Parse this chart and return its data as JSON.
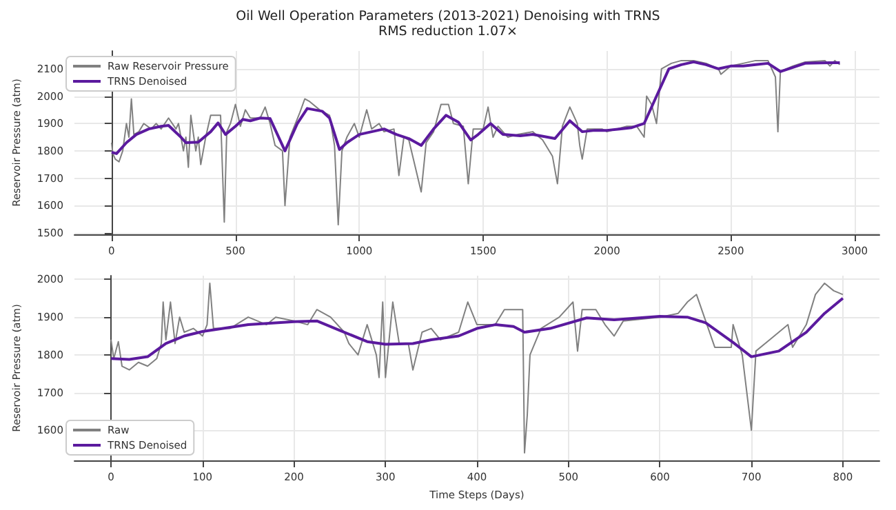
{
  "chart_data": [
    {
      "type": "line",
      "title": "Oil Well Operation Parameters (2013-2021) Denoising with TRNS",
      "subtitle": "RMS reduction 1.07×",
      "ylabel": "Reservoir Pressure (atm)",
      "xlim": [
        -150,
        3100
      ],
      "ylim": [
        1495,
        2165
      ],
      "xticks": [
        0,
        500,
        1000,
        1500,
        2000,
        2500,
        3000
      ],
      "yticks": [
        1500,
        1600,
        1700,
        1800,
        1900,
        2000,
        2100
      ],
      "grid": true,
      "legend": "top left",
      "marker": "none",
      "line_style": "solid",
      "series": [
        {
          "name": "Raw Reservoir Pressure",
          "color": "#808080",
          "x": [
            0,
            5,
            15,
            30,
            45,
            60,
            70,
            80,
            90,
            110,
            130,
            160,
            180,
            200,
            230,
            260,
            270,
            290,
            300,
            310,
            320,
            340,
            350,
            360,
            380,
            400,
            440,
            455,
            465,
            480,
            500,
            520,
            540,
            560,
            600,
            620,
            640,
            660,
            690,
            700,
            720,
            760,
            780,
            800,
            840,
            860,
            880,
            900,
            915,
            930,
            950,
            980,
            1000,
            1030,
            1050,
            1080,
            1100,
            1140,
            1160,
            1180,
            1200,
            1250,
            1270,
            1300,
            1330,
            1360,
            1380,
            1420,
            1440,
            1460,
            1500,
            1520,
            1540,
            1560,
            1600,
            1640,
            1700,
            1740,
            1780,
            1800,
            1820,
            1850,
            1880,
            1890,
            1900,
            1920,
            1980,
            2000,
            2040,
            2080,
            2120,
            2150,
            2160,
            2180,
            2200,
            2220,
            2260,
            2300,
            2350,
            2400,
            2450,
            2460,
            2500,
            2550,
            2600,
            2650,
            2680,
            2690,
            2700,
            2750,
            2800,
            2880,
            2900,
            2920,
            2940
          ],
          "values": [
            1830,
            1790,
            1770,
            1760,
            1800,
            1900,
            1850,
            1990,
            1860,
            1870,
            1900,
            1880,
            1900,
            1880,
            1920,
            1880,
            1900,
            1800,
            1850,
            1740,
            1930,
            1800,
            1850,
            1750,
            1850,
            1930,
            1930,
            1540,
            1870,
            1900,
            1970,
            1890,
            1950,
            1920,
            1920,
            1960,
            1900,
            1820,
            1800,
            1600,
            1850,
            1940,
            1990,
            1980,
            1950,
            1940,
            1930,
            1820,
            1530,
            1800,
            1850,
            1900,
            1850,
            1950,
            1880,
            1900,
            1870,
            1880,
            1710,
            1850,
            1840,
            1650,
            1830,
            1870,
            1970,
            1970,
            1900,
            1890,
            1680,
            1880,
            1880,
            1960,
            1850,
            1890,
            1850,
            1860,
            1870,
            1840,
            1780,
            1680,
            1890,
            1960,
            1900,
            1820,
            1770,
            1880,
            1880,
            1870,
            1880,
            1890,
            1890,
            1850,
            2000,
            1970,
            1900,
            2100,
            2120,
            2130,
            2130,
            2120,
            2100,
            2080,
            2110,
            2120,
            2130,
            2130,
            2070,
            1870,
            2090,
            2110,
            2125,
            2130,
            2110,
            2130,
            2115
          ]
        },
        {
          "name": "TRNS Denoised",
          "color": "#5b1a9e",
          "x": [
            0,
            20,
            60,
            100,
            150,
            200,
            230,
            280,
            300,
            350,
            400,
            430,
            460,
            500,
            530,
            560,
            600,
            640,
            700,
            750,
            790,
            850,
            880,
            920,
            950,
            1000,
            1050,
            1100,
            1150,
            1200,
            1250,
            1300,
            1350,
            1400,
            1450,
            1480,
            1530,
            1580,
            1650,
            1700,
            1790,
            1850,
            1900,
            1950,
            2000,
            2050,
            2100,
            2150,
            2200,
            2250,
            2300,
            2350,
            2400,
            2450,
            2500,
            2550,
            2600,
            2650,
            2700,
            2750,
            2800,
            2900,
            2940
          ],
          "values": [
            1795,
            1790,
            1830,
            1860,
            1880,
            1890,
            1893,
            1850,
            1830,
            1832,
            1870,
            1902,
            1860,
            1890,
            1915,
            1910,
            1920,
            1918,
            1800,
            1900,
            1955,
            1945,
            1920,
            1805,
            1830,
            1860,
            1870,
            1880,
            1860,
            1845,
            1820,
            1880,
            1930,
            1905,
            1840,
            1860,
            1900,
            1860,
            1855,
            1860,
            1845,
            1910,
            1870,
            1875,
            1875,
            1880,
            1885,
            1900,
            2000,
            2100,
            2115,
            2125,
            2115,
            2100,
            2110,
            2110,
            2115,
            2120,
            2090,
            2105,
            2120,
            2122,
            2122
          ]
        }
      ]
    },
    {
      "type": "line",
      "xlabel": "Time Steps (Days)",
      "ylabel": "Reservoir Pressure (atm)",
      "xlim": [
        -40,
        840
      ],
      "ylim": [
        1520,
        2010
      ],
      "xticks": [
        0,
        100,
        200,
        300,
        400,
        500,
        600,
        700,
        800
      ],
      "yticks": [
        1600,
        1700,
        1800,
        1900,
        2000
      ],
      "grid": true,
      "legend": "bottom left",
      "marker": "none",
      "line_style": "solid",
      "series": [
        {
          "name": "Raw",
          "color": "#808080",
          "x": [
            0,
            3,
            8,
            12,
            20,
            30,
            40,
            50,
            55,
            57,
            60,
            65,
            70,
            75,
            80,
            90,
            100,
            105,
            108,
            112,
            130,
            150,
            170,
            180,
            200,
            215,
            225,
            240,
            255,
            260,
            270,
            280,
            290,
            293,
            297,
            300,
            308,
            315,
            325,
            330,
            340,
            350,
            360,
            380,
            390,
            400,
            420,
            430,
            450,
            452,
            455,
            458,
            470,
            490,
            505,
            510,
            515,
            530,
            540,
            550,
            560,
            600,
            620,
            630,
            640,
            650,
            660,
            678,
            680,
            690,
            700,
            705,
            720,
            740,
            745,
            760,
            770,
            780,
            790,
            800
          ],
          "values": [
            1840,
            1790,
            1835,
            1770,
            1760,
            1780,
            1770,
            1790,
            1830,
            1940,
            1840,
            1940,
            1830,
            1900,
            1860,
            1870,
            1850,
            1880,
            1990,
            1870,
            1870,
            1900,
            1880,
            1900,
            1890,
            1880,
            1920,
            1900,
            1860,
            1830,
            1800,
            1880,
            1800,
            1740,
            1940,
            1740,
            1940,
            1830,
            1830,
            1760,
            1860,
            1870,
            1840,
            1860,
            1940,
            1880,
            1880,
            1920,
            1920,
            1540,
            1640,
            1800,
            1870,
            1900,
            1940,
            1810,
            1920,
            1920,
            1880,
            1850,
            1890,
            1900,
            1910,
            1940,
            1960,
            1890,
            1820,
            1820,
            1880,
            1800,
            1600,
            1810,
            1840,
            1880,
            1820,
            1880,
            1960,
            1990,
            1970,
            1960
          ]
        },
        {
          "name": "TRNS Denoised",
          "color": "#5b1a9e",
          "x": [
            0,
            20,
            40,
            60,
            80,
            100,
            150,
            200,
            225,
            250,
            280,
            300,
            330,
            350,
            380,
            400,
            420,
            440,
            452,
            480,
            520,
            550,
            600,
            630,
            650,
            680,
            700,
            730,
            760,
            780,
            800
          ],
          "values": [
            1790,
            1788,
            1795,
            1830,
            1850,
            1862,
            1880,
            1888,
            1890,
            1865,
            1835,
            1828,
            1830,
            1840,
            1850,
            1870,
            1880,
            1875,
            1860,
            1870,
            1898,
            1893,
            1902,
            1900,
            1885,
            1833,
            1795,
            1810,
            1860,
            1910,
            1950
          ]
        }
      ]
    }
  ]
}
